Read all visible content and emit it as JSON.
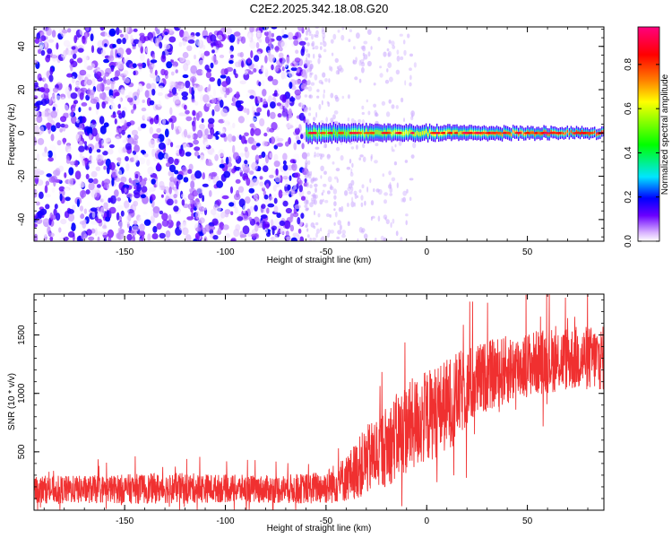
{
  "figure_title": "C2E2.2025.342.18.08.G20",
  "chart_data": [
    {
      "type": "heatmap",
      "title": "",
      "xlabel": "Height of straight line (km)",
      "ylabel": "Frequency (Hz)",
      "xlim": [
        -195,
        88
      ],
      "ylim": [
        -50,
        49
      ],
      "xticks": [
        -150,
        -100,
        -50,
        0,
        50
      ],
      "yticks": [
        -40,
        -20,
        0,
        20,
        40
      ],
      "colorbar": {
        "label": "Normalized spectral amplitude",
        "range": [
          0,
          0.97
        ],
        "ticks": [
          0.0,
          0.2,
          0.4,
          0.6,
          0.8
        ],
        "colormap": [
          "#ffffff",
          "#d9b3ff",
          "#6a00ff",
          "#0000ff",
          "#00e5ff",
          "#00ff00",
          "#ffff00",
          "#ff8000",
          "#ff0000",
          "#ff007f"
        ]
      },
      "regions": [
        {
          "name": "noise",
          "x_range": [
            -195,
            -60
          ],
          "f_range": [
            -50,
            49
          ],
          "typical_amplitude": [
            0.0,
            0.2
          ]
        },
        {
          "name": "transition",
          "x_range": [
            -60,
            -30
          ],
          "f_range": [
            -50,
            49
          ],
          "typical_amplitude": [
            0.0,
            0.05
          ]
        },
        {
          "name": "carrier",
          "x_range": [
            -60,
            88
          ],
          "f_center": 0,
          "f_halfwidth": 3,
          "peak_amplitude": 0.95
        }
      ],
      "grid": false
    },
    {
      "type": "line",
      "title": "",
      "xlabel": "Height of straight line (km)",
      "ylabel": "SNR (10 * v/v)",
      "xlim": [
        -195,
        88
      ],
      "ylim": [
        0,
        1850
      ],
      "xticks": [
        -150,
        -100,
        -50,
        0,
        50
      ],
      "yticks": [
        500,
        1000,
        1500
      ],
      "color": "#f03030",
      "series": [
        {
          "x": [
            -195,
            -180,
            -160,
            -140,
            -120,
            -100,
            -80,
            -60,
            -50,
            -40,
            -30,
            -20,
            -10,
            0,
            10,
            20,
            30,
            40,
            50,
            60,
            70,
            80,
            88
          ],
          "mean": [
            180,
            175,
            180,
            185,
            190,
            185,
            180,
            185,
            200,
            270,
            420,
            550,
            700,
            800,
            900,
            1050,
            1150,
            1200,
            1250,
            1280,
            1300,
            1300,
            1300
          ],
          "spread": [
            120,
            120,
            120,
            130,
            130,
            120,
            120,
            130,
            150,
            200,
            300,
            350,
            400,
            400,
            400,
            350,
            300,
            300,
            280,
            280,
            280,
            280,
            280
          ]
        }
      ],
      "grid": false
    }
  ]
}
